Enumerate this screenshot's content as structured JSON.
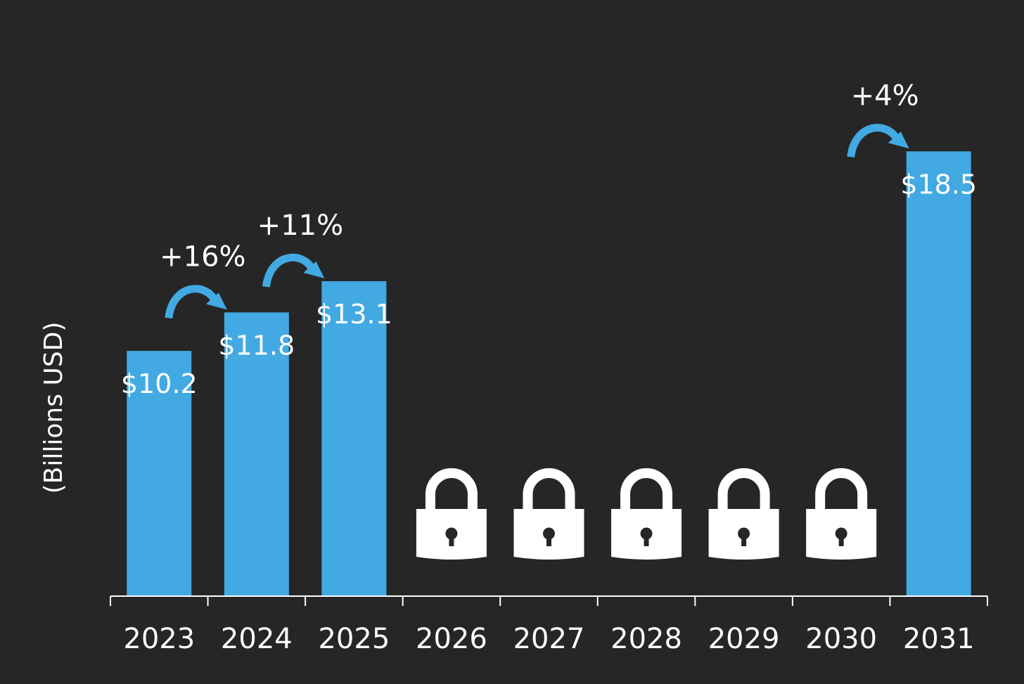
{
  "chart_data": {
    "type": "bar",
    "title": "",
    "xlabel": "",
    "ylabel": "(Billions USD)",
    "ylim": [
      0,
      20
    ],
    "grid": false,
    "categories": [
      "2023",
      "2024",
      "2025",
      "2026",
      "2027",
      "2028",
      "2029",
      "2030",
      "2031"
    ],
    "values": [
      10.2,
      11.8,
      13.1,
      null,
      null,
      null,
      null,
      null,
      18.5
    ],
    "data_labels": [
      "$10.2",
      "$11.8",
      "$13.1",
      "",
      "",
      "",
      "",
      "",
      "$18.5"
    ],
    "locked_categories": [
      "2026",
      "2027",
      "2028",
      "2029",
      "2030"
    ],
    "locked_icon": "lock-icon",
    "growth_annotations": [
      {
        "from": "2023",
        "to": "2024",
        "label": "+16%"
      },
      {
        "from": "2024",
        "to": "2025",
        "label": "+11%"
      },
      {
        "from": "2030",
        "to": "2031",
        "label": "+4%"
      }
    ],
    "colors": {
      "background": "#262626",
      "bar": "#42a9e3",
      "text": "#ffffff",
      "arrow": "#42a9e3",
      "lock": "#ffffff"
    }
  }
}
